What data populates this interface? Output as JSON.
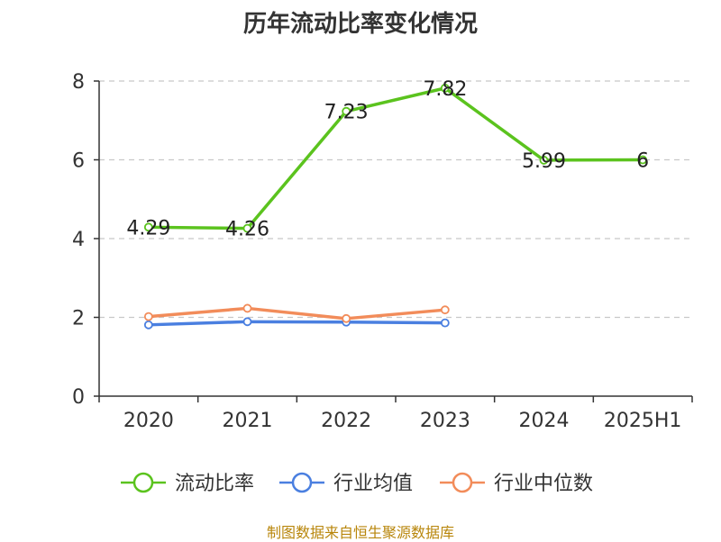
{
  "chart_data": {
    "type": "line",
    "title": "历年流动比率变化情况",
    "categories": [
      "2020",
      "2021",
      "2022",
      "2023",
      "2024",
      "2025H1"
    ],
    "ylim": [
      0,
      8
    ],
    "yticks": [
      0,
      2,
      4,
      6,
      8
    ],
    "grid": true,
    "legend_position": "bottom",
    "series": [
      {
        "name": "流动比率",
        "color": "#5bc31e",
        "values": [
          4.29,
          4.26,
          7.23,
          7.82,
          5.99,
          6
        ],
        "labels": [
          "4.29",
          "4.26",
          "7.23",
          "7.82",
          "5.99",
          "6"
        ]
      },
      {
        "name": "行业均值",
        "color": "#4a7fe0",
        "values": [
          1.81,
          1.89,
          1.88,
          1.86,
          null,
          null
        ]
      },
      {
        "name": "行业中位数",
        "color": "#f28c5a",
        "values": [
          2.02,
          2.23,
          1.97,
          2.19,
          null,
          null
        ]
      }
    ]
  },
  "footer": {
    "source": "制图数据来自恒生聚源数据库"
  }
}
